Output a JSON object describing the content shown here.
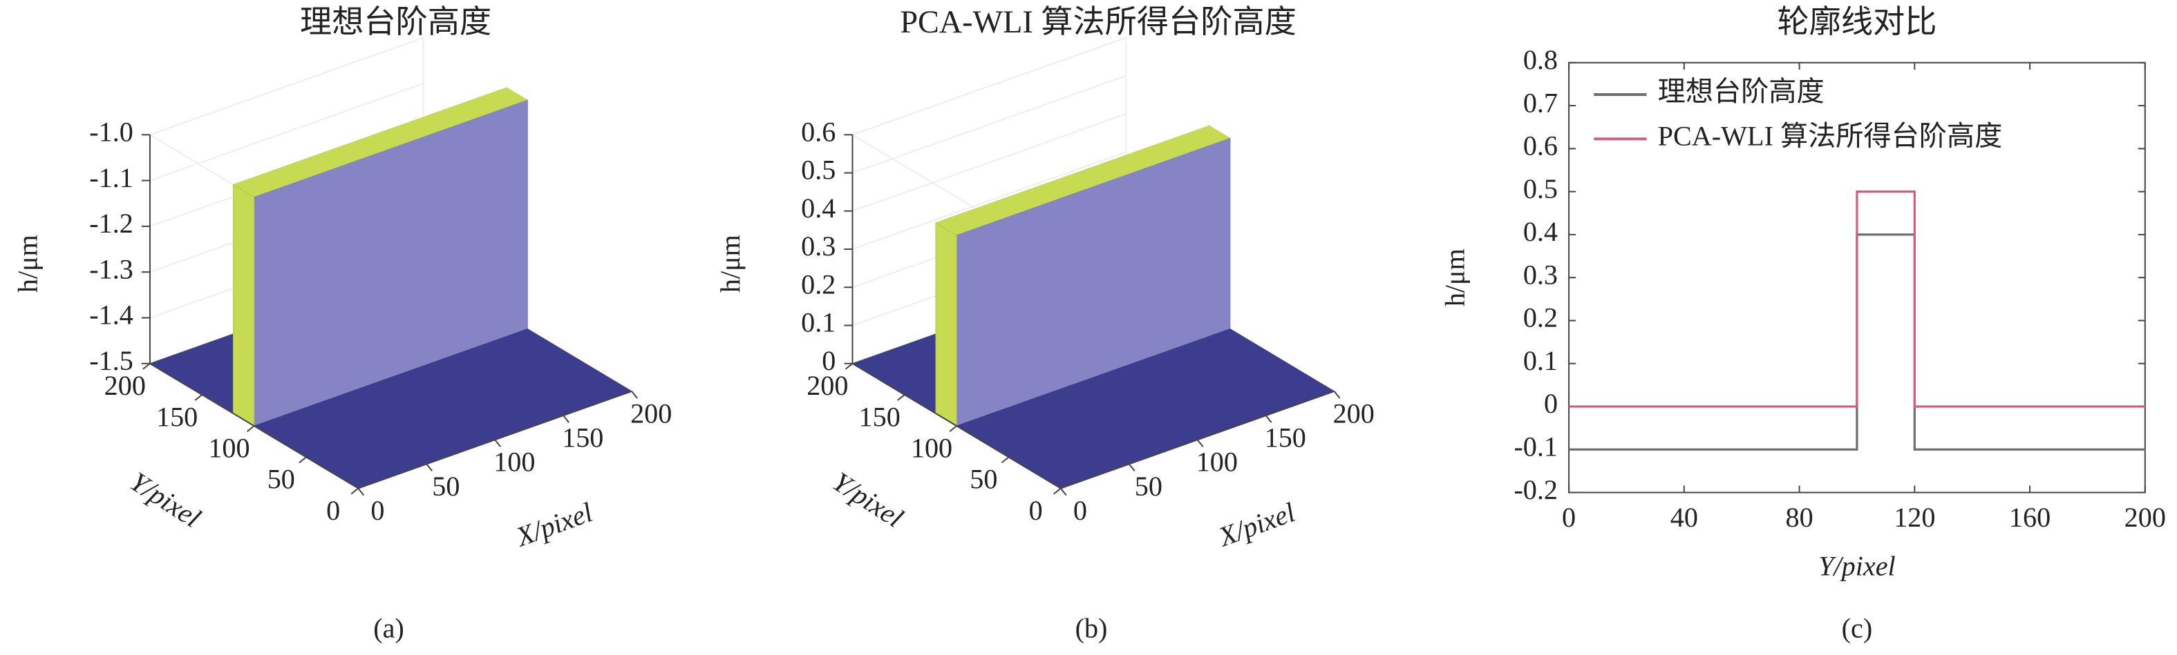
{
  "chart_data": [
    {
      "type": "surface3d",
      "title": "理想台阶高度",
      "caption": "(a)",
      "xlabel": "X/pixel",
      "ylabel": "Y/pixel",
      "zlabel": "h/μm",
      "xlim": [
        0,
        200
      ],
      "ylim": [
        0,
        200
      ],
      "zlim": [
        -1.5,
        -1.0
      ],
      "xticks": [
        0,
        50,
        100,
        150,
        200
      ],
      "yticks": [
        0,
        50,
        100,
        150,
        200
      ],
      "zticks": [
        -1.5,
        -1.4,
        -1.3,
        -1.2,
        -1.1,
        {
          "value": -1,
          "label": "-1.0"
        }
      ],
      "y": [
        0,
        100,
        100,
        120,
        120,
        200
      ],
      "z": [
        -1.5,
        -1.5,
        -1.0,
        -1.0,
        -1.5,
        -1.5
      ],
      "colors": {
        "low": "#3d3d8f",
        "face": "#8585c6",
        "top": "#c6da52"
      },
      "grid": true
    },
    {
      "type": "surface3d",
      "title": "PCA-WLI 算法所得台阶高度",
      "caption": "(b)",
      "xlabel": "X/pixel",
      "ylabel": "Y/pixel",
      "zlabel": "h/μm",
      "xlim": [
        0,
        200
      ],
      "ylim": [
        0,
        200
      ],
      "zlim": [
        0,
        0.6
      ],
      "xticks": [
        0,
        50,
        100,
        150,
        200
      ],
      "yticks": [
        0,
        50,
        100,
        150,
        200
      ],
      "zticks": [
        0,
        0.1,
        0.2,
        0.3,
        0.4,
        0.5,
        0.6
      ],
      "y": [
        0,
        100,
        100,
        120,
        120,
        200
      ],
      "z": [
        0,
        0,
        0.5,
        0.5,
        0,
        0
      ],
      "colors": {
        "low": "#3d3d8f",
        "face": "#8585c6",
        "top": "#c6da52"
      },
      "grid": true
    },
    {
      "type": "line",
      "title": "轮廓线对比",
      "caption": "(c)",
      "xlabel": "Y/pixel",
      "ylabel": "h/μm",
      "xlim": [
        0,
        200
      ],
      "ylim": [
        -0.2,
        0.8
      ],
      "xticks": [
        0,
        40,
        80,
        120,
        160,
        200
      ],
      "yticks": [
        -0.2,
        -0.1,
        0,
        0.1,
        0.2,
        0.3,
        0.4,
        0.5,
        0.6,
        0.7,
        0.8
      ],
      "x": [
        0,
        100,
        100,
        120,
        120,
        200
      ],
      "series": [
        {
          "name": "理想台阶高度",
          "color": "#6e6e6e",
          "values": [
            -0.1,
            -0.1,
            0.4,
            0.4,
            -0.1,
            -0.1
          ]
        },
        {
          "name": "PCA-WLI 算法所得台阶高度",
          "color": "#d2607c",
          "values": [
            0,
            0,
            0.5,
            0.5,
            0,
            0
          ]
        }
      ],
      "legend": "upper left"
    }
  ]
}
